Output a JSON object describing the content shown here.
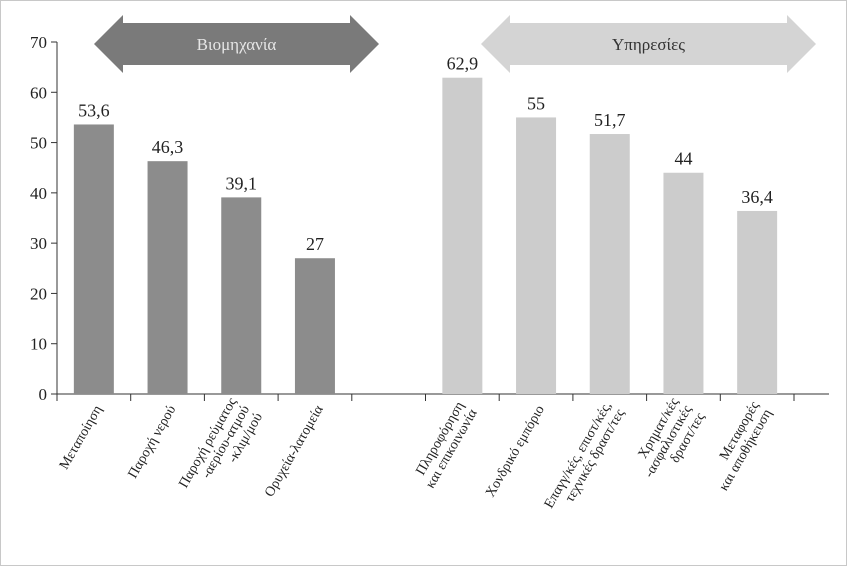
{
  "chart_data": {
    "type": "bar",
    "ylim": [
      0,
      70
    ],
    "yticks": [
      0,
      10,
      20,
      30,
      40,
      50,
      60,
      70
    ],
    "grid": false,
    "groups": [
      {
        "label": "Βιομηχανία",
        "color": "#8c8c8c",
        "arrow_color": "#7a7a7a",
        "text_color": "#e6e6e6",
        "categories": [
          [
            "Μεταποίηση"
          ],
          [
            "Παροχή νερού"
          ],
          [
            "Παροχή ρεύματος",
            "-αερίου-ατμού",
            "-κλιμ/μού"
          ],
          [
            "Ορυχεία-λατομεία"
          ]
        ],
        "values": [
          53.6,
          46.3,
          39.1,
          27
        ],
        "value_labels": [
          "53,6",
          "46,3",
          "39,1",
          "27"
        ]
      },
      {
        "label": "Υπηρεσίες",
        "color": "#cccccc",
        "arrow_color": "#d4d4d4",
        "text_color": "#333333",
        "categories": [
          [
            "Πληροφόρηση",
            "και επικοινωνία"
          ],
          [
            "Χονδρικό εμπόριο"
          ],
          [
            "Επαγγ/κές, επιστ/κές,",
            "τεχνικές δραστ/τες"
          ],
          [
            "Χρηματ/κές",
            "-ασφαλιστικές",
            "δραστ/τες"
          ],
          [
            "Μεταφορές",
            "και αποθήκευση"
          ]
        ],
        "values": [
          62.9,
          55,
          51.7,
          44,
          36.4
        ],
        "value_labels": [
          "62,9",
          "55",
          "51,7",
          "44",
          "36,4"
        ]
      }
    ]
  }
}
